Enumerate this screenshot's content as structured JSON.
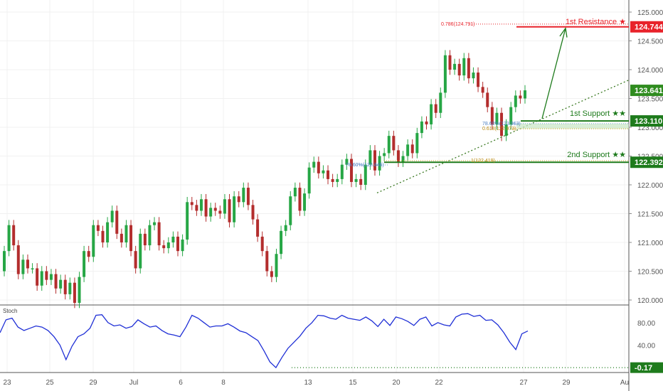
{
  "price_axis": {
    "ticks": [
      "125.000",
      "124.500",
      "124.000",
      "123.500",
      "123.000",
      "122.500",
      "122.000",
      "121.500",
      "121.000",
      "120.500",
      "120.000"
    ],
    "tick_values": [
      125.0,
      124.5,
      124.0,
      123.5,
      123.0,
      122.5,
      122.0,
      121.5,
      121.0,
      120.5,
      120.0
    ]
  },
  "time_axis": {
    "labels": [
      "23",
      "25",
      "29",
      "Jul",
      "6",
      "8",
      "13",
      "15",
      "20",
      "22",
      "27",
      "29",
      "Au"
    ]
  },
  "levels": {
    "resistance": {
      "label": "1st Resistance ★",
      "value": 124.744,
      "badge": "124.744",
      "fib_label": "0.786(124.791)",
      "fib_value": 124.791
    },
    "support1": {
      "label": "1st Support ★★",
      "value": 123.11,
      "badge": "123.110",
      "fib_a_label": "78.60%(123.063)",
      "fib_a_value": 123.063,
      "fib_b_label": "0.618(122.973)",
      "fib_b_value": 122.973
    },
    "support2": {
      "label": "2nd Support ★★",
      "value": 122.392,
      "badge": "122.392",
      "fib_left_label": "78.60%(122.345)",
      "fib_left_value": 122.345,
      "fib_right_label": "1(122.419)",
      "fib_right_value": 122.419
    }
  },
  "current_price": {
    "value": 123.641,
    "badge": "123.641"
  },
  "stoch": {
    "label": "Stoch",
    "ticks": [
      "80.00",
      "40.00"
    ],
    "tick_values": [
      80,
      40
    ],
    "badge": "-0.17",
    "min": -0.17,
    "samples": [
      62,
      85,
      88,
      72,
      66,
      70,
      74,
      72,
      66,
      55,
      40,
      14,
      38,
      55,
      60,
      70,
      93,
      94,
      80,
      74,
      76,
      70,
      73,
      85,
      78,
      72,
      74,
      66,
      60,
      58,
      55,
      72,
      93,
      88,
      80,
      72,
      74,
      74,
      78,
      72,
      65,
      62,
      55,
      48,
      30,
      10,
      -0.17,
      18,
      34,
      45,
      56,
      70,
      80,
      93,
      92,
      88,
      86,
      93,
      88,
      86,
      84,
      90,
      83,
      73,
      86,
      75,
      90,
      87,
      82,
      75,
      86,
      90,
      74,
      80,
      76,
      74,
      90,
      95,
      96,
      91,
      93,
      84,
      85,
      76,
      62,
      45,
      32,
      60,
      65
    ]
  },
  "colors": {
    "up": "#26a645",
    "down": "#b32d2d",
    "resistance": "#e8222a",
    "support": "#1e7b1c",
    "trend": "#3b7a23",
    "current": "#2f8c1f",
    "stoch_line": "#1f2fd6",
    "axis_text": "#555555",
    "grid": "#e6e6e6"
  },
  "candles": [
    [
      120.5,
      120.85
    ],
    [
      120.85,
      121.3
    ],
    [
      121.3,
      120.95
    ],
    [
      120.95,
      120.45
    ],
    [
      120.45,
      120.7
    ],
    [
      120.7,
      120.55
    ],
    [
      120.55,
      120.55
    ],
    [
      120.55,
      120.25
    ],
    [
      120.25,
      120.5
    ],
    [
      120.5,
      120.35
    ],
    [
      120.35,
      120.45
    ],
    [
      120.45,
      120.2
    ],
    [
      120.2,
      120.35
    ],
    [
      120.35,
      120.1
    ],
    [
      120.1,
      120.3
    ],
    [
      120.3,
      119.95
    ],
    [
      119.95,
      120.4
    ],
    [
      120.4,
      120.85
    ],
    [
      120.85,
      120.75
    ],
    [
      120.75,
      121.3
    ],
    [
      121.3,
      121.2
    ],
    [
      121.2,
      121.0
    ],
    [
      121.0,
      121.35
    ],
    [
      121.35,
      121.55
    ],
    [
      121.55,
      121.15
    ],
    [
      121.15,
      121.0
    ],
    [
      121.0,
      121.3
    ],
    [
      121.3,
      120.85
    ],
    [
      120.85,
      120.55
    ],
    [
      120.55,
      121.15
    ],
    [
      121.15,
      120.95
    ],
    [
      120.95,
      121.3
    ],
    [
      121.3,
      121.35
    ],
    [
      121.35,
      120.95
    ],
    [
      120.95,
      120.9
    ],
    [
      120.9,
      121.0
    ],
    [
      121.0,
      121.1
    ],
    [
      121.1,
      120.85
    ],
    [
      120.85,
      121.05
    ],
    [
      121.05,
      121.7
    ],
    [
      121.7,
      121.65
    ],
    [
      121.65,
      121.55
    ],
    [
      121.55,
      121.75
    ],
    [
      121.75,
      121.45
    ],
    [
      121.45,
      121.6
    ],
    [
      121.6,
      121.55
    ],
    [
      121.55,
      121.5
    ],
    [
      121.5,
      121.75
    ],
    [
      121.75,
      121.35
    ],
    [
      121.35,
      121.8
    ],
    [
      121.8,
      121.7
    ],
    [
      121.7,
      121.95
    ],
    [
      121.95,
      121.65
    ],
    [
      121.65,
      121.4
    ],
    [
      121.4,
      121.1
    ],
    [
      121.1,
      120.85
    ],
    [
      120.85,
      120.5
    ],
    [
      120.5,
      120.4
    ],
    [
      120.4,
      120.8
    ],
    [
      120.8,
      121.2
    ],
    [
      121.2,
      121.3
    ],
    [
      121.3,
      121.8
    ],
    [
      121.8,
      121.95
    ],
    [
      121.95,
      121.55
    ],
    [
      121.55,
      121.85
    ],
    [
      121.85,
      122.3
    ],
    [
      122.3,
      122.4
    ],
    [
      122.4,
      122.2
    ],
    [
      122.2,
      122.25
    ],
    [
      122.25,
      122.1
    ],
    [
      122.1,
      122.05
    ],
    [
      122.05,
      122.1
    ],
    [
      122.1,
      122.35
    ],
    [
      122.35,
      122.45
    ],
    [
      122.45,
      122.05
    ],
    [
      122.05,
      122.1
    ],
    [
      122.1,
      122.0
    ],
    [
      122.0,
      122.35
    ],
    [
      122.35,
      122.6
    ],
    [
      122.6,
      122.25
    ],
    [
      122.25,
      122.5
    ],
    [
      122.5,
      122.55
    ],
    [
      122.55,
      122.85
    ],
    [
      122.85,
      122.6
    ],
    [
      122.6,
      122.4
    ],
    [
      122.4,
      122.5
    ],
    [
      122.5,
      122.7
    ],
    [
      122.7,
      122.55
    ],
    [
      122.55,
      122.9
    ],
    [
      122.9,
      123.1
    ],
    [
      123.1,
      123.05
    ],
    [
      123.05,
      123.4
    ],
    [
      123.4,
      123.25
    ],
    [
      123.25,
      123.6
    ],
    [
      123.6,
      124.25
    ],
    [
      124.25,
      124.0
    ],
    [
      124.0,
      124.1
    ],
    [
      124.1,
      123.9
    ],
    [
      123.9,
      124.2
    ],
    [
      124.2,
      123.85
    ],
    [
      123.85,
      123.95
    ],
    [
      123.95,
      123.7
    ],
    [
      123.7,
      123.6
    ],
    [
      123.6,
      123.35
    ],
    [
      123.35,
      123.05
    ],
    [
      123.05,
      123.25
    ],
    [
      123.25,
      122.85
    ],
    [
      122.85,
      123.05
    ],
    [
      123.05,
      123.35
    ],
    [
      123.35,
      123.55
    ],
    [
      123.55,
      123.5
    ],
    [
      123.5,
      123.641
    ]
  ]
}
